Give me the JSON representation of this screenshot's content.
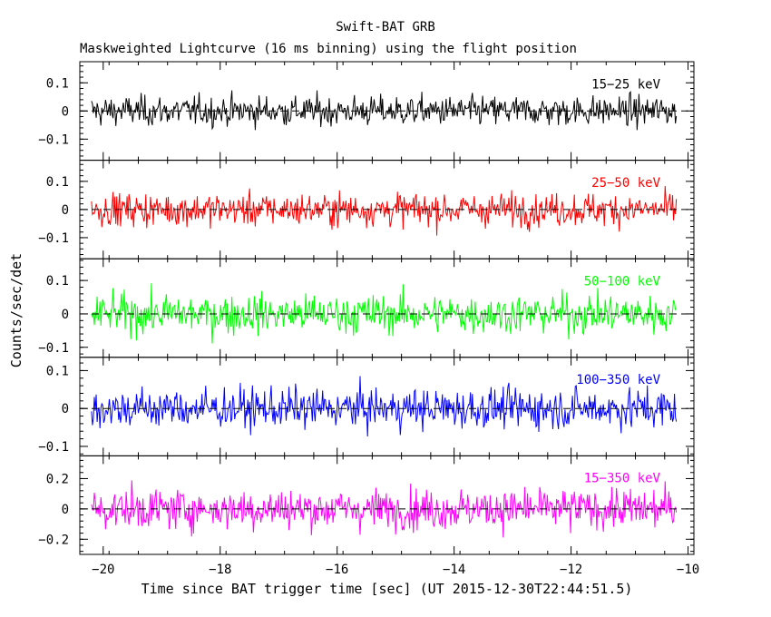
{
  "chart_data": {
    "type": "line",
    "title": "Swift-BAT GRB",
    "subtitle": "Maskweighted Lightcurve (16 ms binning) using the flight position",
    "xlabel": "Time since BAT trigger time [sec] (UT 2015-12-30T22:44:51.5)",
    "ylabel": "Counts/sec/det",
    "xlim": [
      -20.4,
      -9.9
    ],
    "x_ticks": [
      -20,
      -18,
      -16,
      -14,
      -12,
      -10
    ],
    "x_tick_labels": [
      "−20",
      "−18",
      "−16",
      "−14",
      "−12",
      "−10"
    ],
    "series_x_range": [
      -20.2,
      -10.2
    ],
    "binning_sec": 0.016,
    "panels": [
      {
        "band": "15−25 keV",
        "color": "#000000",
        "ylim": [
          -0.175,
          0.175
        ],
        "y_ticks": [
          0.1,
          0,
          -0.1
        ],
        "y_tick_labels": [
          "0.1",
          "0",
          "−0.1"
        ],
        "noise_amplitude": 0.1
      },
      {
        "band": "25−50 keV",
        "color": "#ff0000",
        "ylim": [
          -0.175,
          0.175
        ],
        "y_ticks": [
          0.1,
          0,
          -0.1
        ],
        "y_tick_labels": [
          "0.1",
          "0",
          "−0.1"
        ],
        "noise_amplitude": 0.11
      },
      {
        "band": "50−100 keV",
        "color": "#00ff00",
        "ylim": [
          -0.13,
          0.165
        ],
        "y_ticks": [
          0.1,
          0,
          -0.1
        ],
        "y_tick_labels": [
          "0.1",
          "0",
          "−0.1"
        ],
        "noise_amplitude": 0.11
      },
      {
        "band": "100−350 keV",
        "color": "#0000ff",
        "ylim": [
          -0.125,
          0.135
        ],
        "y_ticks": [
          0.1,
          0,
          -0.1
        ],
        "y_tick_labels": [
          "0.1",
          "0",
          "−0.1"
        ],
        "noise_amplitude": 0.1
      },
      {
        "band": "15−350 keV",
        "color": "#ff00ff",
        "ylim": [
          -0.3,
          0.35
        ],
        "y_ticks": [
          0.2,
          0,
          -0.2
        ],
        "y_tick_labels": [
          "0.2",
          "0",
          "−0.2"
        ],
        "noise_amplitude": 0.25
      }
    ]
  }
}
